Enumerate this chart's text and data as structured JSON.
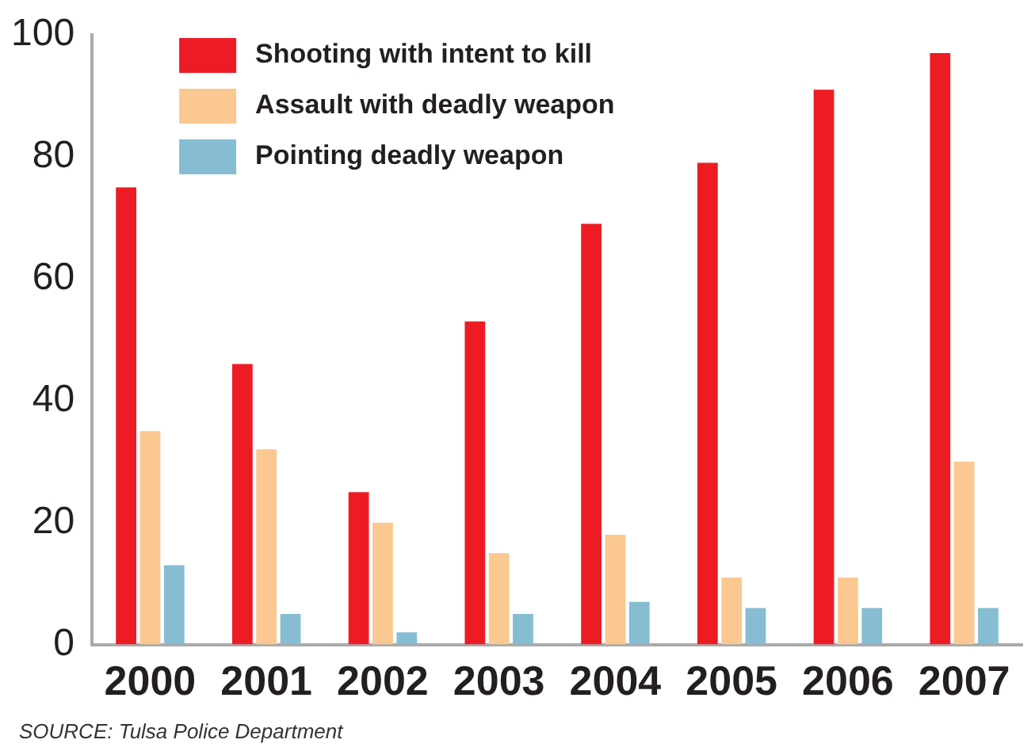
{
  "chart_data": {
    "type": "bar",
    "categories": [
      "2000",
      "2001",
      "2002",
      "2003",
      "2004",
      "2005",
      "2006",
      "2007"
    ],
    "series": [
      {
        "name": "Shooting with intent to kill",
        "color": "#ed1c24",
        "values": [
          75,
          46,
          25,
          53,
          69,
          79,
          91,
          97
        ]
      },
      {
        "name": "Assault with deadly weapon",
        "color": "#fbc891",
        "values": [
          35,
          32,
          20,
          15,
          18,
          11,
          11,
          30
        ]
      },
      {
        "name": "Pointing deadly weapon",
        "color": "#86bdd3",
        "values": [
          13,
          5,
          2,
          5,
          7,
          6,
          6,
          6
        ]
      }
    ],
    "ylim": [
      0,
      100
    ],
    "yticks": [
      0,
      20,
      40,
      60,
      80,
      100
    ],
    "grid": false,
    "legend": "top left",
    "annotations": [
      "SOURCE: Tulsa Police Department"
    ]
  }
}
